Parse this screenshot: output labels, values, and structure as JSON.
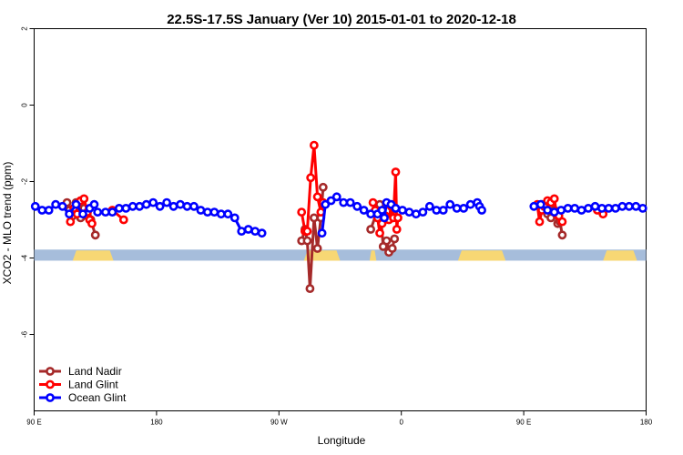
{
  "chart_data": {
    "type": "line",
    "title": "22.5S-17.5S January (Ver 10)   2015-01-01 to 2020-12-18",
    "xlabel": "Longitude",
    "ylabel": "XCO2 - MLO trend (ppm)",
    "xlim": [
      -90,
      180
    ],
    "ylim": [
      -8,
      2
    ],
    "x_ticks": [
      {
        "value": -90,
        "label": "90 E"
      },
      {
        "value": -36,
        "label": "180"
      },
      {
        "value": 18,
        "label": "90 W"
      },
      {
        "value": 72,
        "label": "0"
      },
      {
        "value": 126,
        "label": "90 E"
      },
      {
        "value": 180,
        "label": "180"
      }
    ],
    "y_ticks": [
      {
        "value": 2,
        "label": "2"
      },
      {
        "value": 0,
        "label": "0"
      },
      {
        "value": -2,
        "label": "-2"
      },
      {
        "value": -4,
        "label": "-4"
      },
      {
        "value": -6,
        "label": "-6"
      }
    ],
    "legend_position": "bottom-left",
    "surface_strip": {
      "y_top": -3.78,
      "y_bottom": -4.07,
      "ocean_color": "#a6bddb",
      "land_color": "#f7d774",
      "land_segments": [
        {
          "x_start": -73,
          "x_end": -55
        },
        {
          "x_start": 29,
          "x_end": 45
        },
        {
          "x_start": 58,
          "x_end": 61
        },
        {
          "x_start": 97,
          "x_end": 118
        },
        {
          "x_start": 161,
          "x_end": 176
        }
      ]
    },
    "series": [
      {
        "name": "Land Nadir",
        "color": "#a52a2a",
        "segments": [
          [
            [
              -75.5,
              -2.55
            ],
            [
              -74.5,
              -2.75
            ],
            [
              -73.0,
              -2.9
            ],
            [
              -71.5,
              -2.55
            ],
            [
              -70.5,
              -2.65
            ],
            [
              -69.5,
              -2.95
            ],
            [
              -68.0,
              -2.7
            ],
            [
              -66.5,
              -2.9
            ],
            [
              -65.0,
              -3.0
            ],
            [
              -63.0,
              -3.4
            ]
          ],
          [
            [
              28.0,
              -3.55
            ],
            [
              29.5,
              -3.25
            ],
            [
              30.5,
              -3.55
            ],
            [
              31.7,
              -4.8
            ],
            [
              33.5,
              -2.95
            ],
            [
              35.0,
              -3.75
            ],
            [
              36.5,
              -2.95
            ],
            [
              37.5,
              -2.15
            ]
          ],
          [
            [
              58.5,
              -3.25
            ],
            [
              61.5,
              -2.75
            ],
            [
              62.5,
              -2.6
            ],
            [
              64.0,
              -3.7
            ],
            [
              65.5,
              -3.55
            ],
            [
              66.5,
              -3.85
            ],
            [
              68.0,
              -3.75
            ],
            [
              69.0,
              -3.5
            ]
          ],
          [
            [
              134.0,
              -2.6
            ],
            [
              135.5,
              -2.7
            ],
            [
              136.5,
              -2.85
            ],
            [
              138.0,
              -2.95
            ],
            [
              139.5,
              -2.75
            ],
            [
              141.0,
              -3.1
            ],
            [
              142.0,
              -3.05
            ],
            [
              143.0,
              -3.4
            ]
          ]
        ]
      },
      {
        "name": "Land Glint",
        "color": "#ff0000",
        "segments": [
          [
            [
              -74.0,
              -3.05
            ],
            [
              -72.5,
              -2.7
            ],
            [
              -71.0,
              -2.85
            ],
            [
              -69.5,
              -2.5
            ],
            [
              -68.0,
              -2.45
            ],
            [
              -66.5,
              -2.8
            ],
            [
              -65.5,
              -3.0
            ],
            [
              -64.5,
              -3.1
            ]
          ],
          [
            [
              -55.5,
              -2.75
            ],
            [
              -50.5,
              -3.0
            ]
          ],
          [
            [
              28.0,
              -2.8
            ],
            [
              29.5,
              -3.3
            ],
            [
              30.5,
              -3.3
            ],
            [
              32.0,
              -1.9
            ],
            [
              33.5,
              -1.05
            ],
            [
              35.0,
              -2.4
            ],
            [
              36.5,
              -2.8
            ],
            [
              37.5,
              -2.55
            ]
          ],
          [
            [
              59.5,
              -2.55
            ],
            [
              60.5,
              -2.75
            ],
            [
              61.5,
              -2.95
            ],
            [
              62.5,
              -3.35
            ],
            [
              63.5,
              -3.1
            ],
            [
              65.0,
              -2.9
            ],
            [
              66.5,
              -3.0
            ],
            [
              67.5,
              -2.65
            ],
            [
              68.5,
              -2.95
            ],
            [
              69.5,
              -1.75
            ],
            [
              70.0,
              -3.25
            ],
            [
              70.5,
              -2.95
            ]
          ],
          [
            [
              132.0,
              -2.6
            ],
            [
              133.0,
              -3.05
            ],
            [
              134.0,
              -2.75
            ],
            [
              135.0,
              -2.65
            ],
            [
              136.5,
              -2.5
            ],
            [
              138.0,
              -2.55
            ],
            [
              139.5,
              -2.45
            ],
            [
              140.5,
              -2.85
            ],
            [
              141.5,
              -2.9
            ],
            [
              143.0,
              -3.05
            ]
          ],
          [
            [
              158.5,
              -2.75
            ],
            [
              161.0,
              -2.85
            ]
          ]
        ]
      },
      {
        "name": "Ocean Glint",
        "color": "#0000ff",
        "segments": [
          [
            [
              -89.5,
              -2.65
            ],
            [
              -86.5,
              -2.75
            ],
            [
              -83.5,
              -2.75
            ],
            [
              -80.5,
              -2.6
            ],
            [
              -77.5,
              -2.65
            ],
            [
              -74.5,
              -2.85
            ],
            [
              -71.5,
              -2.6
            ],
            [
              -68.5,
              -2.85
            ],
            [
              -65.5,
              -2.7
            ],
            [
              -63.5,
              -2.6
            ],
            [
              -62.0,
              -2.8
            ],
            [
              -58.5,
              -2.8
            ],
            [
              -55.5,
              -2.8
            ],
            [
              -52.5,
              -2.7
            ],
            [
              -49.5,
              -2.7
            ],
            [
              -46.5,
              -2.65
            ],
            [
              -43.5,
              -2.65
            ],
            [
              -40.5,
              -2.6
            ],
            [
              -37.5,
              -2.55
            ],
            [
              -34.5,
              -2.65
            ],
            [
              -31.5,
              -2.55
            ],
            [
              -28.5,
              -2.65
            ],
            [
              -25.5,
              -2.6
            ],
            [
              -22.5,
              -2.65
            ],
            [
              -19.5,
              -2.65
            ],
            [
              -16.5,
              -2.75
            ],
            [
              -13.5,
              -2.8
            ],
            [
              -10.5,
              -2.8
            ],
            [
              -7.5,
              -2.85
            ],
            [
              -4.5,
              -2.85
            ],
            [
              -1.5,
              -2.95
            ],
            [
              1.5,
              -3.3
            ],
            [
              4.5,
              -3.25
            ],
            [
              7.5,
              -3.3
            ],
            [
              10.5,
              -3.35
            ]
          ],
          [
            [
              37.0,
              -3.35
            ],
            [
              38.5,
              -2.6
            ],
            [
              41.0,
              -2.5
            ],
            [
              43.5,
              -2.4
            ],
            [
              46.5,
              -2.55
            ],
            [
              49.5,
              -2.55
            ],
            [
              52.5,
              -2.65
            ],
            [
              55.5,
              -2.75
            ],
            [
              58.5,
              -2.85
            ],
            [
              61.5,
              -2.85
            ],
            [
              63.5,
              -2.75
            ],
            [
              64.5,
              -2.95
            ],
            [
              65.5,
              -2.55
            ],
            [
              67.5,
              -2.6
            ],
            [
              69.5,
              -2.7
            ],
            [
              72.5,
              -2.75
            ],
            [
              75.5,
              -2.8
            ],
            [
              78.5,
              -2.85
            ],
            [
              81.5,
              -2.8
            ],
            [
              84.5,
              -2.65
            ],
            [
              87.5,
              -2.75
            ],
            [
              90.5,
              -2.75
            ],
            [
              93.5,
              -2.6
            ],
            [
              96.5,
              -2.7
            ],
            [
              99.5,
              -2.7
            ],
            [
              102.5,
              -2.6
            ],
            [
              105.5,
              -2.55
            ],
            [
              106.5,
              -2.65
            ],
            [
              107.5,
              -2.75
            ]
          ],
          [
            [
              130.5,
              -2.65
            ],
            [
              133.5,
              -2.6
            ],
            [
              136.5,
              -2.75
            ],
            [
              139.5,
              -2.8
            ],
            [
              142.5,
              -2.75
            ],
            [
              145.5,
              -2.7
            ],
            [
              148.5,
              -2.7
            ],
            [
              151.5,
              -2.75
            ],
            [
              154.5,
              -2.7
            ],
            [
              157.5,
              -2.65
            ],
            [
              160.5,
              -2.7
            ],
            [
              163.5,
              -2.7
            ],
            [
              166.5,
              -2.7
            ],
            [
              169.5,
              -2.65
            ],
            [
              172.5,
              -2.65
            ],
            [
              175.5,
              -2.65
            ],
            [
              178.5,
              -2.7
            ]
          ]
        ]
      }
    ]
  }
}
